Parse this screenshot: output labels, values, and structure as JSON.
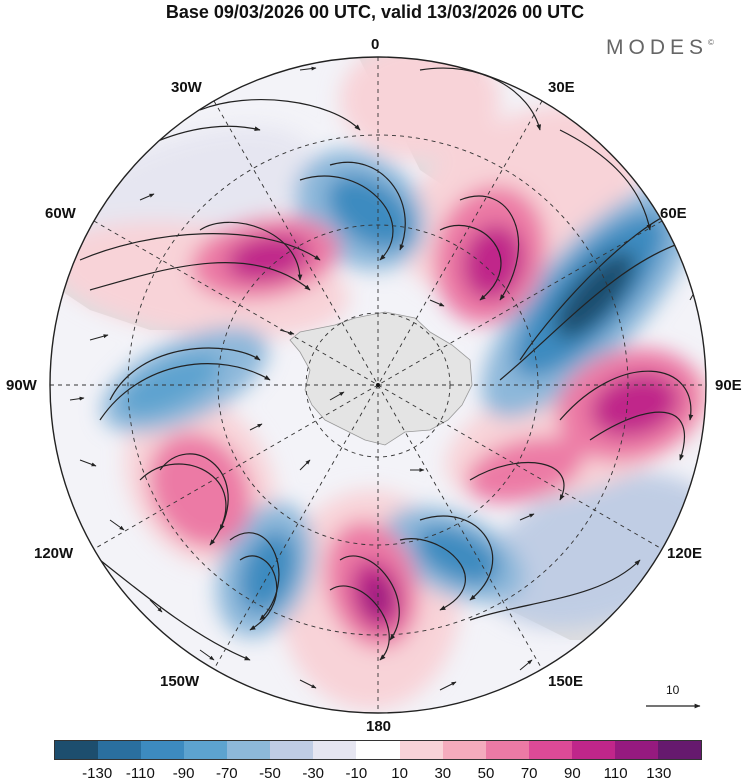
{
  "title": "Base 09/03/2026 00 UTC, valid 13/03/2026 00 UTC",
  "brand": {
    "name": "MODES",
    "mark": "©"
  },
  "longitude_labels": {
    "deg0": "0",
    "deg30e": "30E",
    "deg60e": "60E",
    "deg90e": "90E",
    "deg120e": "120E",
    "deg150e": "150E",
    "deg180": "180",
    "deg150w": "150W",
    "deg120w": "120W",
    "deg90w": "90W",
    "deg60w": "60W",
    "deg30w": "30W"
  },
  "reference_vector": {
    "label": "10"
  },
  "colorbar": {
    "colors": [
      "#1d4e6e",
      "#2a6f9f",
      "#3d8bc0",
      "#5da3cf",
      "#8db8da",
      "#c0cde4",
      "#e6e6f1",
      "#ffffff",
      "#f8d3d8",
      "#f4abbd",
      "#ec7aa5",
      "#dd4a97",
      "#c0268a",
      "#961a7f",
      "#66196e"
    ],
    "tick_labels": [
      "-130",
      "-110",
      "-90",
      "-70",
      "-50",
      "-30",
      "-10",
      "10",
      "30",
      "50",
      "70",
      "90",
      "110",
      "130"
    ]
  },
  "colors": {
    "land": "#cccccc",
    "antarctica": "#e4e4e4",
    "outline": "#222222"
  }
}
